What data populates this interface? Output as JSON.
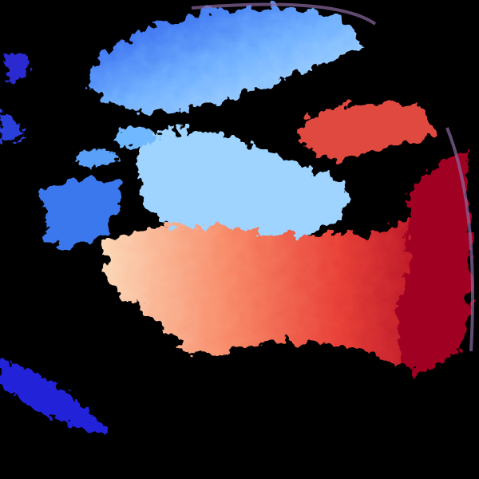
{
  "image": {
    "kind": "radar-velocity-field",
    "background": "#000000",
    "colors": {
      "dark_blue": "#1a1ae0",
      "blue": "#3a7cf0",
      "light_blue": "#a8dcff",
      "pale": "#fbe0c0",
      "salmon": "#f88060",
      "red": "#e03030",
      "dark_red": "#a00020"
    }
  }
}
